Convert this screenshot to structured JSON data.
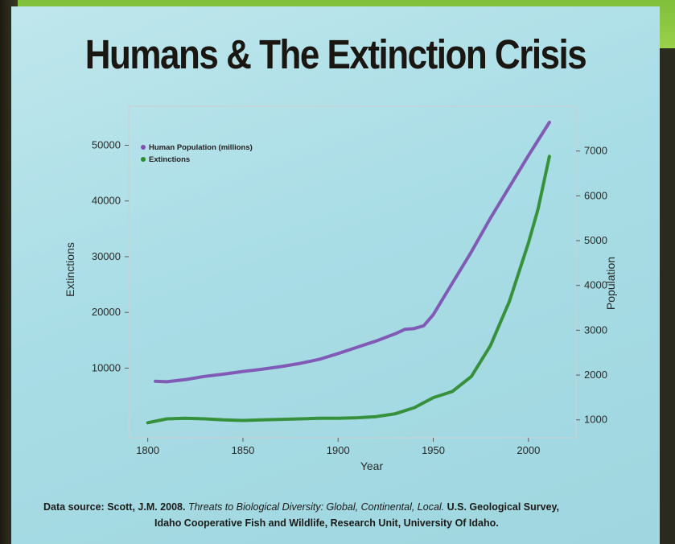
{
  "slide": {
    "title": "Humans & The Extinction Crisis",
    "source": {
      "prefix": "Data source: Scott, J.M. 2008. ",
      "work_title": "Threats to Biological Diversity: Global, Continental, Local.",
      "suffix_line1": " U.S. Geological Survey,",
      "line2": "Idaho Cooperative Fish and Wildlife, Research Unit, University Of Idaho."
    }
  },
  "chart_data": {
    "type": "line",
    "xlabel": "Year",
    "ylabel_left": "Extinctions",
    "ylabel_right": "Population",
    "xlim": [
      1790,
      2025
    ],
    "ylim_left": [
      -2500,
      57000
    ],
    "ylim_right": [
      600,
      8000
    ],
    "x_ticks": [
      1800,
      1850,
      1900,
      1950,
      2000
    ],
    "y_ticks_left": [
      10000,
      20000,
      30000,
      40000,
      50000
    ],
    "y_ticks_right": [
      1000,
      2000,
      3000,
      4000,
      5000,
      6000,
      7000
    ],
    "grid": false,
    "legend_position": "top-left",
    "series": [
      {
        "name": "Human Population (millions)",
        "axis": "right",
        "color": "#7d4fb0",
        "x": [
          1804,
          1810,
          1820,
          1830,
          1840,
          1850,
          1860,
          1870,
          1880,
          1890,
          1900,
          1910,
          1920,
          1930,
          1935,
          1940,
          1945,
          1950,
          1955,
          1960,
          1970,
          1980,
          1990,
          2000,
          2011
        ],
        "values": [
          1860,
          1850,
          1900,
          1970,
          2020,
          2080,
          2130,
          2190,
          2260,
          2350,
          2480,
          2620,
          2760,
          2920,
          3020,
          3040,
          3100,
          3350,
          3700,
          4050,
          4750,
          5500,
          6200,
          6900,
          7640
        ]
      },
      {
        "name": "Extinctions",
        "axis": "left",
        "color": "#2e8b2e",
        "x": [
          1800,
          1810,
          1820,
          1830,
          1840,
          1850,
          1860,
          1870,
          1880,
          1890,
          1900,
          1910,
          1920,
          1930,
          1940,
          1950,
          1960,
          1970,
          1980,
          1990,
          2000,
          2005,
          2011
        ],
        "values": [
          200,
          900,
          1000,
          900,
          700,
          600,
          700,
          800,
          900,
          1000,
          1000,
          1100,
          1300,
          1800,
          2900,
          4700,
          5800,
          8500,
          14000,
          22000,
          32500,
          38500,
          48000
        ]
      }
    ]
  }
}
